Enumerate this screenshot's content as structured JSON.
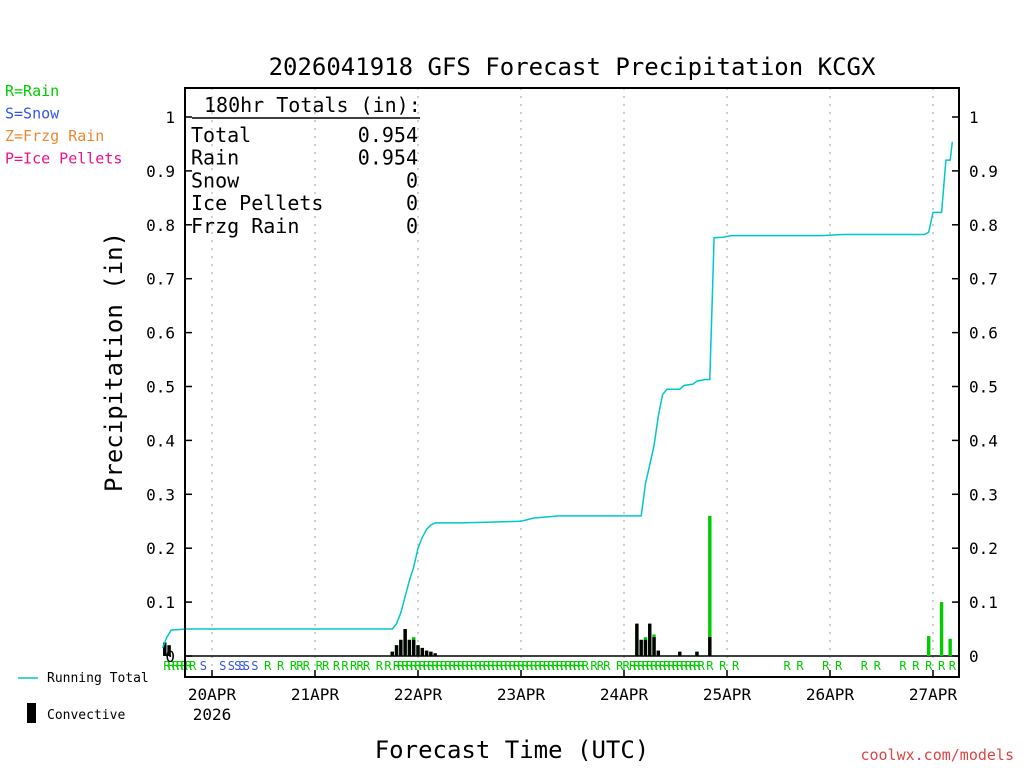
{
  "chart_data": {
    "type": "bar",
    "title": "2026041918 GFS Forecast Precipitation KCGX",
    "xlabel": "Forecast Time (UTC)",
    "ylabel": "Precipitation (in)",
    "ylim": [
      0,
      1.05
    ],
    "xlim_hours": [
      -5.5,
      178
    ],
    "yticks": [
      "0",
      "0.1",
      "0.2",
      "0.3",
      "0.4",
      "0.5",
      "0.6",
      "0.7",
      "0.8",
      "0.9",
      "1"
    ],
    "ytick_values": [
      0,
      0.1,
      0.2,
      0.3,
      0.4,
      0.5,
      0.6,
      0.7,
      0.8,
      0.9,
      1
    ],
    "xticks": [
      {
        "label": "20APR",
        "sub": "2026",
        "hour": 6
      },
      {
        "label": "21APR",
        "sub": "",
        "hour": 30
      },
      {
        "label": "22APR",
        "sub": "",
        "hour": 54
      },
      {
        "label": "23APR",
        "sub": "",
        "hour": 78
      },
      {
        "label": "24APR",
        "sub": "",
        "hour": 102
      },
      {
        "label": "25APR",
        "sub": "",
        "hour": 126
      },
      {
        "label": "26APR",
        "sub": "",
        "hour": 150
      },
      {
        "label": "27APR",
        "sub": "",
        "hour": 174
      }
    ],
    "legend_types": [
      {
        "text": "R=Rain",
        "color": "#00cc00"
      },
      {
        "text": "S=Snow",
        "color": "#3355ee"
      },
      {
        "text": "Z=Frzg Rain",
        "color": "#ee8833"
      },
      {
        "text": "P=Ice Pellets",
        "color": "#ee1188"
      }
    ],
    "legend_bottom": {
      "running_total": "Running Total",
      "convective": "Convective"
    },
    "totals": {
      "header": "180hr Totals (in):",
      "rows": [
        {
          "label": "Total",
          "value": "0.954"
        },
        {
          "label": "Rain",
          "value": "0.954"
        },
        {
          "label": "Snow",
          "value": "0"
        },
        {
          "label": "Ice Pellets",
          "value": "0"
        },
        {
          "label": "Frzg Rain",
          "value": "0"
        }
      ]
    },
    "credit": "coolwx.com/models",
    "colors": {
      "running_total": "#00c8c8",
      "rain": "#00cc00",
      "snow": "#3355ee",
      "convective": "#000000",
      "grid": "#b0b0b0"
    },
    "running_total": [
      {
        "h": -5.5,
        "v": 0.015
      },
      {
        "h": -4.5,
        "v": 0.035
      },
      {
        "h": -3.5,
        "v": 0.048
      },
      {
        "h": 0,
        "v": 0.05
      },
      {
        "h": 48,
        "v": 0.05
      },
      {
        "h": 49,
        "v": 0.06
      },
      {
        "h": 50,
        "v": 0.08
      },
      {
        "h": 51,
        "v": 0.11
      },
      {
        "h": 52,
        "v": 0.14
      },
      {
        "h": 53,
        "v": 0.165
      },
      {
        "h": 54,
        "v": 0.2
      },
      {
        "h": 55,
        "v": 0.22
      },
      {
        "h": 56,
        "v": 0.235
      },
      {
        "h": 57,
        "v": 0.243
      },
      {
        "h": 58,
        "v": 0.247
      },
      {
        "h": 64,
        "v": 0.247
      },
      {
        "h": 70,
        "v": 0.248
      },
      {
        "h": 78,
        "v": 0.25
      },
      {
        "h": 81,
        "v": 0.256
      },
      {
        "h": 87,
        "v": 0.26
      },
      {
        "h": 106,
        "v": 0.26
      },
      {
        "h": 107,
        "v": 0.32
      },
      {
        "h": 108,
        "v": 0.355
      },
      {
        "h": 109,
        "v": 0.39
      },
      {
        "h": 110,
        "v": 0.445
      },
      {
        "h": 111,
        "v": 0.485
      },
      {
        "h": 112,
        "v": 0.495
      },
      {
        "h": 115,
        "v": 0.495
      },
      {
        "h": 116,
        "v": 0.502
      },
      {
        "h": 118,
        "v": 0.504
      },
      {
        "h": 119,
        "v": 0.51
      },
      {
        "h": 121,
        "v": 0.513
      },
      {
        "h": 122,
        "v": 0.513
      },
      {
        "h": 123,
        "v": 0.776
      },
      {
        "h": 125,
        "v": 0.777
      },
      {
        "h": 127,
        "v": 0.78
      },
      {
        "h": 148,
        "v": 0.78
      },
      {
        "h": 153,
        "v": 0.782
      },
      {
        "h": 172,
        "v": 0.782
      },
      {
        "h": 173,
        "v": 0.786
      },
      {
        "h": 174,
        "v": 0.823
      },
      {
        "h": 176,
        "v": 0.823
      },
      {
        "h": 177,
        "v": 0.92
      },
      {
        "h": 178,
        "v": 0.92
      },
      {
        "h": 178.5,
        "v": 0.954
      }
    ],
    "bars": [
      {
        "h": -5,
        "v": 0.025,
        "conv": 0.025
      },
      {
        "h": -4,
        "v": 0.02,
        "conv": 0.02
      },
      {
        "h": 48,
        "v": 0.008,
        "conv": 0.008
      },
      {
        "h": 49,
        "v": 0.02,
        "conv": 0.02
      },
      {
        "h": 50,
        "v": 0.03,
        "conv": 0.03
      },
      {
        "h": 51,
        "v": 0.05,
        "conv": 0.05
      },
      {
        "h": 52,
        "v": 0.03,
        "conv": 0.03
      },
      {
        "h": 53,
        "v": 0.035,
        "conv": 0.03
      },
      {
        "h": 54,
        "v": 0.02,
        "conv": 0.02
      },
      {
        "h": 55,
        "v": 0.015,
        "conv": 0.015
      },
      {
        "h": 56,
        "v": 0.01,
        "conv": 0.01
      },
      {
        "h": 57,
        "v": 0.008,
        "conv": 0.008
      },
      {
        "h": 58,
        "v": 0.005,
        "conv": 0.005
      },
      {
        "h": 105,
        "v": 0.06,
        "conv": 0.06
      },
      {
        "h": 106,
        "v": 0.03,
        "conv": 0.03
      },
      {
        "h": 107,
        "v": 0.035,
        "conv": 0.03
      },
      {
        "h": 108,
        "v": 0.06,
        "conv": 0.06
      },
      {
        "h": 109,
        "v": 0.04,
        "conv": 0.035
      },
      {
        "h": 110,
        "v": 0.01,
        "conv": 0.01
      },
      {
        "h": 115,
        "v": 0.008,
        "conv": 0.008
      },
      {
        "h": 119,
        "v": 0.008,
        "conv": 0.008
      },
      {
        "h": 122,
        "v": 0.26,
        "conv": 0.035
      },
      {
        "h": 173,
        "v": 0.037,
        "conv": 0.0
      },
      {
        "h": 176,
        "v": 0.1,
        "conv": 0.0
      },
      {
        "h": 178,
        "v": 0.032,
        "conv": 0.0
      }
    ],
    "type_labels": [
      {
        "h": -4.5,
        "t": "R"
      },
      {
        "h": -3.5,
        "t": "R"
      },
      {
        "h": -2.5,
        "t": "R"
      },
      {
        "h": -1.5,
        "t": "R"
      },
      {
        "h": -0.5,
        "t": "R"
      },
      {
        "h": 0.5,
        "t": "R"
      },
      {
        "h": 1.5,
        "t": "R"
      },
      {
        "h": 4,
        "t": "S"
      },
      {
        "h": 8.5,
        "t": "S"
      },
      {
        "h": 10.5,
        "t": "S"
      },
      {
        "h": 12,
        "t": "S"
      },
      {
        "h": 13,
        "t": "S"
      },
      {
        "h": 14,
        "t": "S"
      },
      {
        "h": 16,
        "t": "S"
      },
      {
        "h": 19,
        "t": "R"
      },
      {
        "h": 22,
        "t": "R"
      },
      {
        "h": 25,
        "t": "R"
      },
      {
        "h": 26.5,
        "t": "R"
      },
      {
        "h": 28,
        "t": "R"
      },
      {
        "h": 31,
        "t": "R"
      },
      {
        "h": 32.5,
        "t": "R"
      },
      {
        "h": 35,
        "t": "R"
      },
      {
        "h": 37,
        "t": "R"
      },
      {
        "h": 39,
        "t": "R"
      },
      {
        "h": 40.5,
        "t": "R"
      },
      {
        "h": 42,
        "t": "R"
      },
      {
        "h": 45,
        "t": "R"
      },
      {
        "h": 47,
        "t": "R"
      },
      {
        "h": 49,
        "t": "R"
      },
      {
        "h": 50,
        "t": "R"
      },
      {
        "h": 51,
        "t": "R"
      },
      {
        "h": 52,
        "t": "R"
      },
      {
        "h": 53,
        "t": "R"
      },
      {
        "h": 54,
        "t": "R"
      },
      {
        "h": 55,
        "t": "R"
      },
      {
        "h": 56,
        "t": "R"
      },
      {
        "h": 57,
        "t": "R"
      },
      {
        "h": 58,
        "t": "R"
      },
      {
        "h": 59,
        "t": "R"
      },
      {
        "h": 60,
        "t": "R"
      },
      {
        "h": 61,
        "t": "R"
      },
      {
        "h": 62,
        "t": "R"
      },
      {
        "h": 63,
        "t": "R"
      },
      {
        "h": 64,
        "t": "R"
      },
      {
        "h": 65,
        "t": "R"
      },
      {
        "h": 66,
        "t": "R"
      },
      {
        "h": 67,
        "t": "R"
      },
      {
        "h": 68,
        "t": "R"
      },
      {
        "h": 69,
        "t": "R"
      },
      {
        "h": 70,
        "t": "R"
      },
      {
        "h": 71,
        "t": "R"
      },
      {
        "h": 72,
        "t": "R"
      },
      {
        "h": 73,
        "t": "R"
      },
      {
        "h": 74,
        "t": "R"
      },
      {
        "h": 75,
        "t": "R"
      },
      {
        "h": 76,
        "t": "R"
      },
      {
        "h": 77,
        "t": "R"
      },
      {
        "h": 78,
        "t": "R"
      },
      {
        "h": 79,
        "t": "R"
      },
      {
        "h": 80,
        "t": "R"
      },
      {
        "h": 81,
        "t": "R"
      },
      {
        "h": 82,
        "t": "R"
      },
      {
        "h": 83,
        "t": "R"
      },
      {
        "h": 84,
        "t": "R"
      },
      {
        "h": 85,
        "t": "R"
      },
      {
        "h": 86,
        "t": "R"
      },
      {
        "h": 87,
        "t": "R"
      },
      {
        "h": 88,
        "t": "R"
      },
      {
        "h": 89,
        "t": "R"
      },
      {
        "h": 90,
        "t": "R"
      },
      {
        "h": 91,
        "t": "R"
      },
      {
        "h": 92,
        "t": "R"
      },
      {
        "h": 93,
        "t": "R"
      },
      {
        "h": 95,
        "t": "R"
      },
      {
        "h": 96.5,
        "t": "R"
      },
      {
        "h": 98,
        "t": "R"
      },
      {
        "h": 101,
        "t": "R"
      },
      {
        "h": 102.5,
        "t": "R"
      },
      {
        "h": 104,
        "t": "R"
      },
      {
        "h": 105,
        "t": "R"
      },
      {
        "h": 106,
        "t": "R"
      },
      {
        "h": 107,
        "t": "R"
      },
      {
        "h": 108,
        "t": "R"
      },
      {
        "h": 109,
        "t": "R"
      },
      {
        "h": 110,
        "t": "R"
      },
      {
        "h": 111,
        "t": "R"
      },
      {
        "h": 112,
        "t": "R"
      },
      {
        "h": 113,
        "t": "R"
      },
      {
        "h": 114,
        "t": "R"
      },
      {
        "h": 115,
        "t": "R"
      },
      {
        "h": 116,
        "t": "R"
      },
      {
        "h": 117,
        "t": "R"
      },
      {
        "h": 118,
        "t": "R"
      },
      {
        "h": 119,
        "t": "R"
      },
      {
        "h": 120,
        "t": "R"
      },
      {
        "h": 122,
        "t": "R"
      },
      {
        "h": 125,
        "t": "R"
      },
      {
        "h": 128,
        "t": "R"
      },
      {
        "h": 140,
        "t": "R"
      },
      {
        "h": 143,
        "t": "R"
      },
      {
        "h": 149,
        "t": "R"
      },
      {
        "h": 152,
        "t": "R"
      },
      {
        "h": 158,
        "t": "R"
      },
      {
        "h": 161,
        "t": "R"
      },
      {
        "h": 167,
        "t": "R"
      },
      {
        "h": 170,
        "t": "R"
      },
      {
        "h": 173,
        "t": "R"
      },
      {
        "h": 176,
        "t": "R"
      },
      {
        "h": 178.5,
        "t": "R"
      }
    ]
  }
}
